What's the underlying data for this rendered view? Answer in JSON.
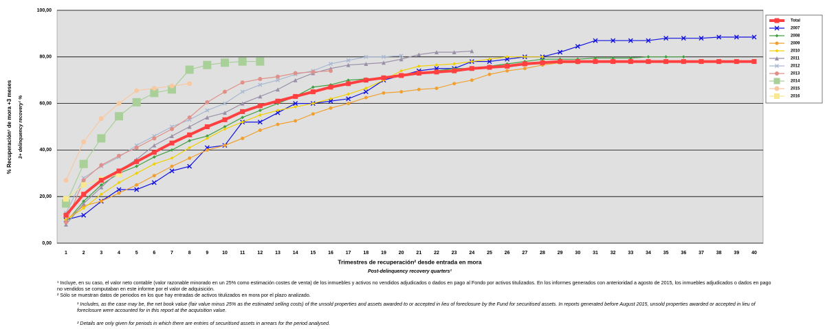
{
  "chart_data": {
    "type": "line",
    "y_label": "% Recuperación¹ de mora +3 meses",
    "y_label_en": "3+ delinquency recovery¹ %",
    "x_label": "Trimestres de recuperación² desde entrada en mora",
    "x_label_en": "Post-delinquency recovery quarters²",
    "categories": [
      "1",
      "2",
      "3",
      "4",
      "5",
      "6",
      "7",
      "8",
      "9",
      "10",
      "11",
      "12",
      "13",
      "14",
      "15",
      "16",
      "17",
      "18",
      "19",
      "20",
      "21",
      "22",
      "23",
      "24",
      "25",
      "26",
      "27",
      "28",
      "29",
      "30",
      "31",
      "32",
      "33",
      "34",
      "35",
      "36",
      "37",
      "38",
      "39",
      "40"
    ],
    "ylim": [
      0,
      100
    ],
    "yticks": [
      {
        "value": 0,
        "label": "0,00"
      },
      {
        "value": 20,
        "label": "20,00"
      },
      {
        "value": 40,
        "label": "40,00"
      },
      {
        "value": 60,
        "label": "60,00"
      },
      {
        "value": 80,
        "label": "80,00"
      },
      {
        "value": 100,
        "label": "100,00"
      }
    ],
    "grid": true,
    "legend": "right",
    "series": [
      {
        "name": "Total",
        "color": "#ff4040",
        "marker": "square",
        "marker_size": 7,
        "line_width": 4,
        "values": [
          12,
          21,
          27,
          31,
          35,
          39,
          43,
          46.5,
          50,
          53,
          56.5,
          59,
          61,
          63,
          65,
          67,
          68.5,
          70,
          71,
          72,
          73,
          73.5,
          74,
          75,
          75.5,
          76,
          77,
          77.5,
          78,
          78,
          78,
          78,
          78,
          78,
          78,
          78,
          78,
          78,
          78,
          78
        ]
      },
      {
        "name": "2007",
        "color": "#1010e0",
        "marker": "x",
        "marker_size": 6,
        "line_width": 1.2,
        "values": [
          10,
          12,
          18,
          23,
          23,
          26,
          31,
          33,
          41,
          42,
          52,
          52,
          56,
          60,
          60,
          61,
          62,
          65,
          70,
          72,
          74,
          75,
          75,
          78,
          78,
          79,
          80,
          80,
          82,
          84.5,
          87,
          87,
          87,
          87,
          88,
          88,
          88,
          88.5,
          88.5,
          88.5
        ]
      },
      {
        "name": "2008",
        "color": "#40a040",
        "marker": "diamond",
        "marker_size": 5,
        "line_width": 1.2,
        "values": [
          9,
          18,
          25,
          30,
          33,
          37,
          40,
          44,
          46,
          50,
          54,
          57,
          60,
          63,
          67,
          68,
          70,
          70.5,
          71,
          72,
          73,
          74,
          75,
          75,
          76,
          77,
          78,
          79,
          79,
          79,
          79.5,
          79.5,
          79.5,
          80,
          80,
          80,
          null,
          null,
          null,
          null
        ]
      },
      {
        "name": "2009",
        "color": "#f0a030",
        "marker": "circle",
        "marker_size": 5,
        "line_width": 1.2,
        "values": [
          10,
          16,
          18,
          21.5,
          25,
          29,
          33,
          36.5,
          40,
          42,
          45,
          48.5,
          51,
          52.5,
          55.5,
          58,
          60,
          62.5,
          64.5,
          65,
          66,
          66.5,
          68.5,
          70,
          72.5,
          74,
          75,
          76.5,
          77.5,
          77.5,
          78,
          null,
          null,
          null,
          null,
          null,
          null,
          null,
          null,
          null
        ]
      },
      {
        "name": "2010",
        "color": "#f0d000",
        "marker": "diamond",
        "marker_size": 5,
        "line_width": 1.2,
        "values": [
          10,
          15,
          21,
          26,
          30,
          34,
          36.5,
          41,
          45,
          49,
          52,
          55,
          57,
          58.5,
          60,
          62,
          64,
          66.5,
          70,
          74,
          76,
          76.5,
          77,
          78,
          79,
          80,
          80,
          80,
          null,
          null,
          null,
          null,
          null,
          null,
          null,
          null,
          null,
          null,
          null,
          null
        ]
      },
      {
        "name": "2011",
        "color": "#9a90a8",
        "marker": "triangle",
        "marker_size": 6,
        "line_width": 1.2,
        "values": [
          8,
          17,
          24,
          31,
          36,
          42,
          46,
          50,
          54,
          56,
          60,
          63,
          66,
          70,
          73,
          75,
          76.5,
          77,
          77.5,
          79,
          81,
          82,
          82,
          82.5,
          null,
          null,
          null,
          null,
          null,
          null,
          null,
          null,
          null,
          null,
          null,
          null,
          null,
          null,
          null,
          null
        ]
      },
      {
        "name": "2012",
        "color": "#a8b8d0",
        "marker": "x",
        "marker_size": 5,
        "line_width": 1.2,
        "values": [
          13,
          28,
          33,
          37,
          42,
          46,
          50,
          53,
          57,
          60,
          65,
          68,
          70,
          72.5,
          74,
          77,
          78.5,
          80,
          80,
          80.5,
          null,
          null,
          null,
          null,
          null,
          null,
          null,
          null,
          null,
          null,
          null,
          null,
          null,
          null,
          null,
          null,
          null,
          null,
          null,
          null
        ]
      },
      {
        "name": "2013",
        "color": "#e09088",
        "marker": "circle",
        "marker_size": 6,
        "line_width": 1.2,
        "values": [
          9,
          27,
          33.5,
          37.5,
          41,
          45,
          49,
          54,
          60.5,
          65,
          69,
          70.5,
          71.5,
          73,
          73.5,
          74,
          null,
          null,
          null,
          null,
          null,
          null,
          null,
          null,
          null,
          null,
          null,
          null,
          null,
          null,
          null,
          null,
          null,
          null,
          null,
          null,
          null,
          null,
          null,
          null
        ]
      },
      {
        "name": "2014",
        "color": "#a8d098",
        "marker": "square",
        "marker_size": 12,
        "line_width": 1.2,
        "values": [
          17,
          34,
          45,
          54.5,
          60.5,
          64.5,
          66,
          74.5,
          76.5,
          77.5,
          78,
          78,
          null,
          null,
          null,
          null,
          null,
          null,
          null,
          null,
          null,
          null,
          null,
          null,
          null,
          null,
          null,
          null,
          null,
          null,
          null,
          null,
          null,
          null,
          null,
          null,
          null,
          null,
          null,
          null
        ]
      },
      {
        "name": "2015",
        "color": "#f8c8a0",
        "marker": "circle",
        "marker_size": 7,
        "line_width": 1.2,
        "values": [
          27,
          43.5,
          53.5,
          60,
          65.5,
          66.5,
          67.5,
          68.5,
          null,
          null,
          null,
          null,
          null,
          null,
          null,
          null,
          null,
          null,
          null,
          null,
          null,
          null,
          null,
          null,
          null,
          null,
          null,
          null,
          null,
          null,
          null,
          null,
          null,
          null,
          null,
          null,
          null,
          null,
          null,
          null
        ]
      },
      {
        "name": "2016",
        "color": "#f8e890",
        "marker": "square",
        "marker_size": 8,
        "line_width": 1.2,
        "values": [
          19,
          25,
          27.5,
          29.5,
          null,
          null,
          null,
          null,
          null,
          null,
          null,
          null,
          null,
          null,
          null,
          null,
          null,
          null,
          null,
          null,
          null,
          null,
          null,
          null,
          null,
          null,
          null,
          null,
          null,
          null,
          null,
          null,
          null,
          null,
          null,
          null,
          null,
          null,
          null,
          null
        ]
      }
    ]
  },
  "notes": [
    "¹ Incluye, en su caso, el valor neto contable (valor razonable minorado en un 25% como estimación costes de venta) de los inmuebles y activos no vendidos adjudicados o dados en pago al Fondo por activos titulizados. En los informes generados con anterioridad a agosto de 2015, los inmuebles adjudicados o dados en pago no vendidos se computaban en este informe por el valor de adquisición.",
    "² Sólo se muestran datos de periodos en los que hay entradas de activos titulizados en mora por el plazo analizado.",
    "¹ Includes, as the case may be, the net book value (fair value minus 25% as the estimated selling costs) of the unsold properties and assets awarded to or accepted in lieu of foreclosure by the Fund for securitised assets. In reports generated before August 2015, unsold properties awarded or accepted in lieu of foreclosure were accounted for in this report at the acquisition value.",
    "² Details are only given for periods in which there are entries of securitised assets in arrears for the period analysed."
  ]
}
